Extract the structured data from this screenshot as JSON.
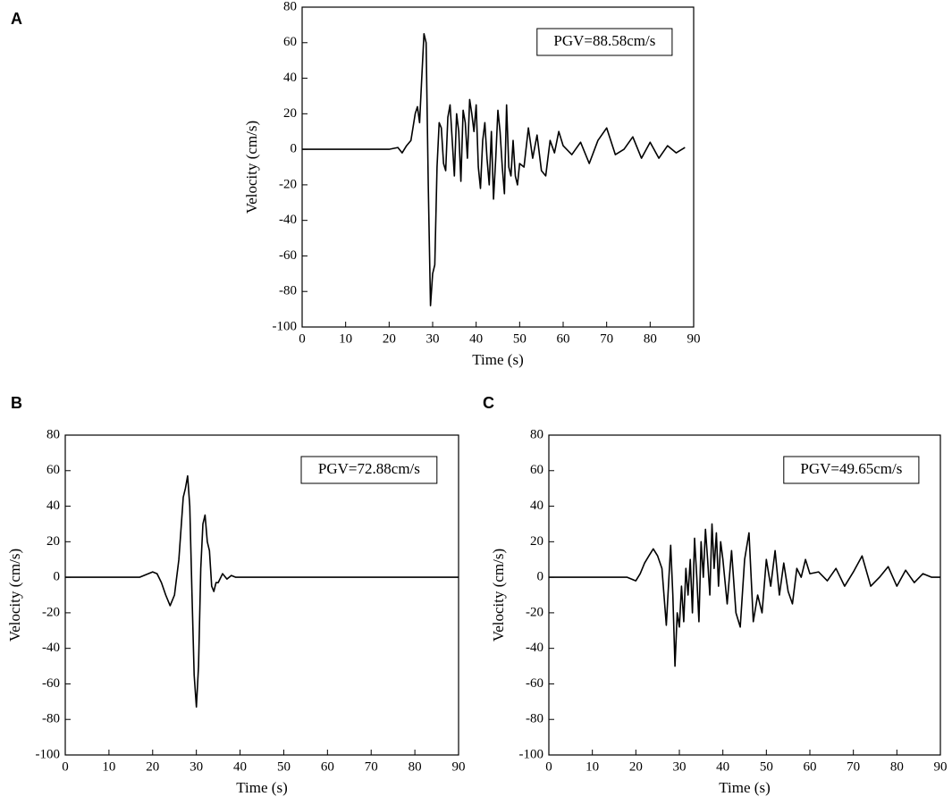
{
  "chart_data": [
    {
      "type": "line",
      "panel": "A",
      "annotation": "PGV=88.58cm/s",
      "xlabel": "Time (s)",
      "ylabel": "Velocity (cm/s)",
      "color": "#000000",
      "xlim": [
        0,
        90
      ],
      "ylim": [
        -100,
        80
      ],
      "xticks": [
        0,
        10,
        20,
        30,
        40,
        50,
        60,
        70,
        80,
        90
      ],
      "yticks": [
        -100,
        -80,
        -60,
        -40,
        -20,
        0,
        20,
        40,
        60,
        80
      ],
      "x": [
        0,
        15,
        20,
        22,
        23,
        24,
        25,
        26,
        26.5,
        27,
        27.5,
        28,
        28.5,
        29,
        29.5,
        30,
        30.5,
        31,
        31.5,
        32,
        32.5,
        33,
        33.5,
        34,
        34.5,
        35,
        35.5,
        36,
        36.5,
        37,
        37.5,
        38,
        38.5,
        39,
        39.5,
        40,
        40.5,
        41,
        41.5,
        42,
        42.5,
        43,
        43.5,
        44,
        44.5,
        45,
        45.5,
        46,
        46.5,
        47,
        47.5,
        48,
        48.5,
        49,
        49.5,
        50,
        51,
        52,
        53,
        54,
        55,
        56,
        57,
        58,
        59,
        60,
        62,
        64,
        66,
        68,
        70,
        72,
        74,
        76,
        78,
        80,
        82,
        84,
        86,
        88
      ],
      "values": [
        0,
        0,
        0,
        1,
        -2,
        2,
        5,
        20,
        24,
        15,
        40,
        65,
        60,
        -20,
        -88,
        -70,
        -65,
        -10,
        15,
        12,
        -8,
        -12,
        18,
        25,
        5,
        -15,
        20,
        10,
        -18,
        22,
        15,
        -5,
        28,
        20,
        10,
        25,
        -10,
        -22,
        5,
        15,
        -5,
        -20,
        10,
        -28,
        -5,
        22,
        10,
        -10,
        -25,
        25,
        -10,
        -15,
        5,
        -15,
        -20,
        -8,
        -10,
        12,
        -5,
        8,
        -12,
        -15,
        5,
        -2,
        10,
        2,
        -3,
        4,
        -8,
        5,
        12,
        -3,
        0,
        7,
        -5,
        4,
        -5,
        2,
        -2,
        1
      ]
    },
    {
      "type": "line",
      "panel": "B",
      "annotation": "PGV=72.88cm/s",
      "xlabel": "Time (s)",
      "ylabel": "Velocity (cm/s)",
      "color": "#000000",
      "xlim": [
        0,
        90
      ],
      "ylim": [
        -100,
        80
      ],
      "xticks": [
        0,
        10,
        20,
        30,
        40,
        50,
        60,
        70,
        80,
        90
      ],
      "yticks": [
        -100,
        -80,
        -60,
        -40,
        -20,
        0,
        20,
        40,
        60,
        80
      ],
      "x": [
        0,
        15,
        17,
        18,
        19,
        20,
        21,
        22,
        23,
        24,
        25,
        26,
        27,
        27.5,
        28,
        28.5,
        29,
        29.5,
        30,
        30.5,
        31,
        31.5,
        32,
        32.5,
        33,
        33.5,
        34,
        34.5,
        35,
        36,
        37,
        38,
        39,
        40,
        90
      ],
      "values": [
        0,
        0,
        0,
        1,
        2,
        3,
        2,
        -3,
        -10,
        -16,
        -10,
        10,
        45,
        50,
        57,
        40,
        -10,
        -55,
        -73,
        -50,
        5,
        30,
        35,
        20,
        15,
        -5,
        -8,
        -3,
        -3,
        2,
        -1,
        1,
        0,
        0,
        0
      ]
    },
    {
      "type": "line",
      "panel": "C",
      "annotation": "PGV=49.65cm/s",
      "xlabel": "Time (s)",
      "ylabel": "Velocity (cm/s)",
      "color": "#000000",
      "xlim": [
        0,
        90
      ],
      "ylim": [
        -100,
        80
      ],
      "xticks": [
        0,
        10,
        20,
        30,
        40,
        50,
        60,
        70,
        80,
        90
      ],
      "yticks": [
        -100,
        -80,
        -60,
        -40,
        -20,
        0,
        20,
        40,
        60,
        80
      ],
      "x": [
        0,
        15,
        18,
        20,
        21,
        22,
        23,
        24,
        25,
        26,
        27,
        27.5,
        28,
        28.5,
        29,
        29.5,
        30,
        30.5,
        31,
        31.5,
        32,
        32.5,
        33,
        33.5,
        34,
        34.5,
        35,
        35.5,
        36,
        36.5,
        37,
        37.5,
        38,
        38.5,
        39,
        39.5,
        40,
        41,
        42,
        43,
        44,
        45,
        46,
        47,
        48,
        49,
        50,
        51,
        52,
        53,
        54,
        55,
        56,
        57,
        58,
        59,
        60,
        62,
        64,
        66,
        68,
        70,
        72,
        74,
        76,
        78,
        80,
        82,
        84,
        86,
        88,
        90
      ],
      "values": [
        0,
        0,
        0,
        -2,
        2,
        8,
        12,
        16,
        12,
        5,
        -27,
        -5,
        18,
        -10,
        -50,
        -20,
        -28,
        -5,
        -25,
        5,
        -10,
        10,
        -20,
        22,
        0,
        -25,
        20,
        0,
        27,
        10,
        -10,
        30,
        5,
        25,
        -5,
        20,
        10,
        -15,
        15,
        -20,
        -28,
        10,
        25,
        -25,
        -10,
        -20,
        10,
        -5,
        15,
        -10,
        8,
        -8,
        -15,
        5,
        0,
        10,
        2,
        3,
        -2,
        5,
        -5,
        3,
        12,
        -5,
        0,
        6,
        -5,
        4,
        -3,
        2,
        0,
        0
      ]
    }
  ]
}
